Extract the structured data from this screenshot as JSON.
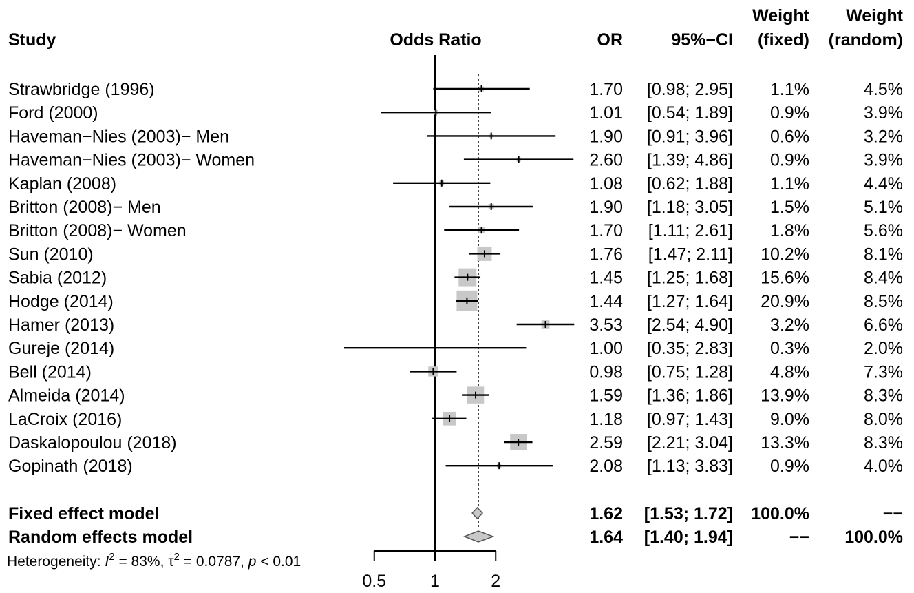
{
  "headers": {
    "study": "Study",
    "plot": "Odds Ratio",
    "or": "OR",
    "ci": "95%−CI",
    "wfixed_line1": "Weight",
    "wfixed_line2": "(fixed)",
    "wrandom_line1": "Weight",
    "wrandom_line2": "(random)"
  },
  "chart_data": {
    "type": "forest",
    "scale": "log",
    "xlabel": "",
    "ticks": [
      0.5,
      1,
      2
    ],
    "tick_labels": [
      "0.5",
      "1",
      "2"
    ],
    "xlim": [
      0.5,
      2
    ],
    "reference_line": 1,
    "summary_line": 1.64,
    "studies": [
      {
        "name": "Strawbridge (1996)",
        "or": 1.7,
        "lo": 0.98,
        "hi": 2.95,
        "or_text": "1.70",
        "ci_text": "[0.98; 2.95]",
        "w_fixed": "1.1%",
        "w_random": "4.5%"
      },
      {
        "name": "Ford (2000)",
        "or": 1.01,
        "lo": 0.54,
        "hi": 1.89,
        "or_text": "1.01",
        "ci_text": "[0.54; 1.89]",
        "w_fixed": "0.9%",
        "w_random": "3.9%"
      },
      {
        "name": "Haveman−Nies (2003)− Men",
        "or": 1.9,
        "lo": 0.91,
        "hi": 3.96,
        "or_text": "1.90",
        "ci_text": "[0.91; 3.96]",
        "w_fixed": "0.6%",
        "w_random": "3.2%"
      },
      {
        "name": "Haveman−Nies (2003)− Women",
        "or": 2.6,
        "lo": 1.39,
        "hi": 4.86,
        "or_text": "2.60",
        "ci_text": "[1.39; 4.86]",
        "w_fixed": "0.9%",
        "w_random": "3.9%"
      },
      {
        "name": "Kaplan (2008)",
        "or": 1.08,
        "lo": 0.62,
        "hi": 1.88,
        "or_text": "1.08",
        "ci_text": "[0.62; 1.88]",
        "w_fixed": "1.1%",
        "w_random": "4.4%"
      },
      {
        "name": "Britton (2008)− Men",
        "or": 1.9,
        "lo": 1.18,
        "hi": 3.05,
        "or_text": "1.90",
        "ci_text": "[1.18; 3.05]",
        "w_fixed": "1.5%",
        "w_random": "5.1%"
      },
      {
        "name": "Britton (2008)− Women",
        "or": 1.7,
        "lo": 1.11,
        "hi": 2.61,
        "or_text": "1.70",
        "ci_text": "[1.11; 2.61]",
        "w_fixed": "1.8%",
        "w_random": "5.6%"
      },
      {
        "name": "Sun (2010)",
        "or": 1.76,
        "lo": 1.47,
        "hi": 2.11,
        "or_text": "1.76",
        "ci_text": "[1.47; 2.11]",
        "w_fixed": "10.2%",
        "w_random": "8.1%"
      },
      {
        "name": "Sabia (2012)",
        "or": 1.45,
        "lo": 1.25,
        "hi": 1.68,
        "or_text": "1.45",
        "ci_text": "[1.25; 1.68]",
        "w_fixed": "15.6%",
        "w_random": "8.4%"
      },
      {
        "name": "Hodge (2014)",
        "or": 1.44,
        "lo": 1.27,
        "hi": 1.64,
        "or_text": "1.44",
        "ci_text": "[1.27; 1.64]",
        "w_fixed": "20.9%",
        "w_random": "8.5%"
      },
      {
        "name": "Hamer (2013)",
        "or": 3.53,
        "lo": 2.54,
        "hi": 4.9,
        "or_text": "3.53",
        "ci_text": "[2.54; 4.90]",
        "w_fixed": "3.2%",
        "w_random": "6.6%"
      },
      {
        "name": "Gureje (2014)",
        "or": 1.0,
        "lo": 0.35,
        "hi": 2.83,
        "or_text": "1.00",
        "ci_text": "[0.35; 2.83]",
        "w_fixed": "0.3%",
        "w_random": "2.0%"
      },
      {
        "name": "Bell (2014)",
        "or": 0.98,
        "lo": 0.75,
        "hi": 1.28,
        "or_text": "0.98",
        "ci_text": "[0.75; 1.28]",
        "w_fixed": "4.8%",
        "w_random": "7.3%"
      },
      {
        "name": "Almeida (2014)",
        "or": 1.59,
        "lo": 1.36,
        "hi": 1.86,
        "or_text": "1.59",
        "ci_text": "[1.36; 1.86]",
        "w_fixed": "13.9%",
        "w_random": "8.3%"
      },
      {
        "name": "LaCroix (2016)",
        "or": 1.18,
        "lo": 0.97,
        "hi": 1.43,
        "or_text": "1.18",
        "ci_text": "[0.97; 1.43]",
        "w_fixed": "9.0%",
        "w_random": "8.0%"
      },
      {
        "name": "Daskalopoulou (2018)",
        "or": 2.59,
        "lo": 2.21,
        "hi": 3.04,
        "or_text": "2.59",
        "ci_text": "[2.21; 3.04]",
        "w_fixed": "13.3%",
        "w_random": "8.3%"
      },
      {
        "name": "Gopinath (2018)",
        "or": 2.08,
        "lo": 1.13,
        "hi": 3.83,
        "or_text": "2.08",
        "ci_text": "[1.13; 3.83]",
        "w_fixed": "0.9%",
        "w_random": "4.0%"
      }
    ],
    "summaries": [
      {
        "name": "Fixed effect model",
        "or": 1.62,
        "lo": 1.53,
        "hi": 1.72,
        "or_text": "1.62",
        "ci_text": "[1.53; 1.72]",
        "w_fixed": "100.0%",
        "w_random": "−−"
      },
      {
        "name": "Random effects model",
        "or": 1.64,
        "lo": 1.4,
        "hi": 1.94,
        "or_text": "1.64",
        "ci_text": "[1.40; 1.94]",
        "w_fixed": "−−",
        "w_random": "100.0%"
      }
    ],
    "heterogeneity": {
      "label": "Heterogeneity: ",
      "i2_symbol": "I",
      "i2_value": " = 83%, ",
      "tau2_symbol": "τ",
      "tau2_value": " = 0.0787, ",
      "p_symbol": "p",
      "p_value": " < 0.01"
    },
    "colors": {
      "box_fill": "#c8c8c8",
      "diamond_fill": "#c8c8c8",
      "line": "#000000"
    }
  }
}
